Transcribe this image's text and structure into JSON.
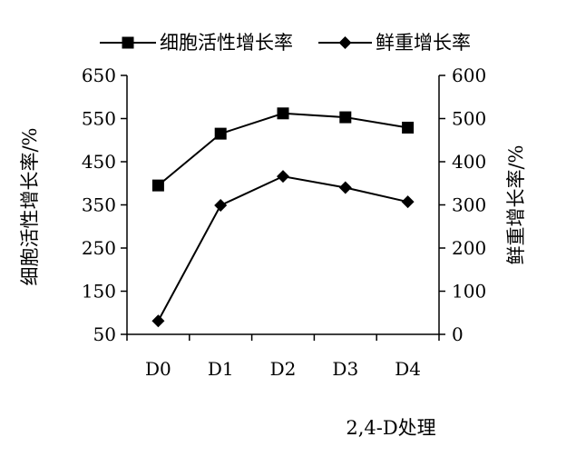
{
  "chart_data": {
    "type": "line",
    "categories": [
      "D0",
      "D1",
      "D2",
      "D3",
      "D4"
    ],
    "xlabel": "2,4-D处理",
    "ylabel_left": "细胞活性增长率/%",
    "ylabel_right": "鲜重增长率/%",
    "ylim_left": [
      50,
      650
    ],
    "ylim_right": [
      0,
      600
    ],
    "yticks_left": [
      50,
      150,
      250,
      350,
      450,
      550,
      650
    ],
    "yticks_right": [
      0,
      100,
      200,
      300,
      400,
      500,
      600
    ],
    "grid": false,
    "legend_position": "top",
    "series": [
      {
        "name": "细胞活性增长率",
        "axis": "left",
        "marker": "square",
        "color": "#000000",
        "values": [
          395,
          515,
          562,
          553,
          529
        ]
      },
      {
        "name": "鲜重增长率",
        "axis": "right",
        "marker": "diamond",
        "color": "#000000",
        "values": [
          31,
          299,
          366,
          340,
          307
        ]
      }
    ]
  }
}
